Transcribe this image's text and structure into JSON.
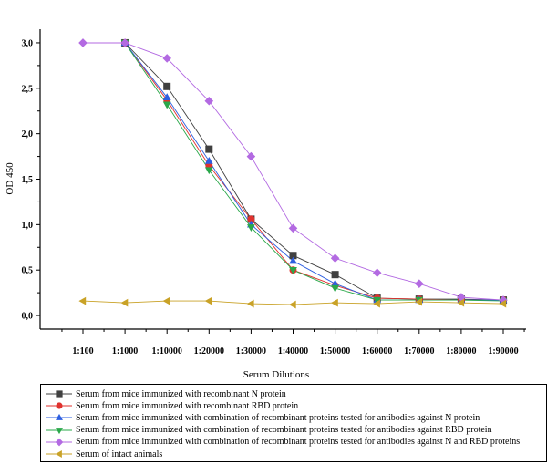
{
  "chart_data": {
    "type": "line",
    "title": "",
    "xlabel": "Serum Dilutions",
    "ylabel": "OD 450",
    "categories": [
      "1:100",
      "1:1000",
      "1:10000",
      "1:20000",
      "1:30000",
      "1:40000",
      "1:50000",
      "1:60000",
      "1:70000",
      "1:80000",
      "1:90000"
    ],
    "yticks": [
      "0,0",
      "0,5",
      "1,0",
      "1,5",
      "2,0",
      "2,5",
      "3,0"
    ],
    "ylim": [
      -0.15,
      3.15
    ],
    "grid": false,
    "legend_position": "bottom",
    "series": [
      {
        "name": "Serum from mice immunized with recombinant N protein",
        "marker": "square",
        "color": "#404040",
        "values": [
          null,
          3.0,
          2.52,
          1.83,
          1.06,
          0.66,
          0.45,
          0.19,
          0.18,
          0.18,
          0.17
        ]
      },
      {
        "name": "Serum from mice immunized with recombinant RBD protein",
        "marker": "circle",
        "color": "#e0322e",
        "values": [
          null,
          3.0,
          2.37,
          1.65,
          1.06,
          0.5,
          0.33,
          0.19,
          0.18,
          0.17,
          0.17
        ]
      },
      {
        "name": "Serum from mice immunized with combination of recombinant proteins tested for antibodies against N protein",
        "marker": "triangle-up",
        "color": "#2e5fe0",
        "values": [
          null,
          3.0,
          2.4,
          1.7,
          1.0,
          0.6,
          0.35,
          0.17,
          0.17,
          0.17,
          0.17
        ]
      },
      {
        "name": "Serum from mice immunized with combination of recombinant proteins tested for antibodies against RBD protein",
        "marker": "triangle-down",
        "color": "#2aa84a",
        "values": [
          null,
          3.0,
          2.32,
          1.6,
          0.97,
          0.5,
          0.3,
          0.17,
          0.17,
          0.17,
          0.16
        ]
      },
      {
        "name": "Serum from mice immunized with combination of recombinant proteins tested for antibodies against N and RBD proteins",
        "marker": "diamond",
        "color": "#b36ae2",
        "values": [
          3.0,
          3.0,
          2.83,
          2.36,
          1.75,
          0.96,
          0.63,
          0.47,
          0.35,
          0.2,
          0.17
        ]
      },
      {
        "name": "Serum of intact animals",
        "marker": "triangle-left",
        "color": "#c9a227",
        "values": [
          0.16,
          0.14,
          0.16,
          0.16,
          0.13,
          0.12,
          0.14,
          0.13,
          0.15,
          0.14,
          0.13
        ]
      }
    ]
  }
}
